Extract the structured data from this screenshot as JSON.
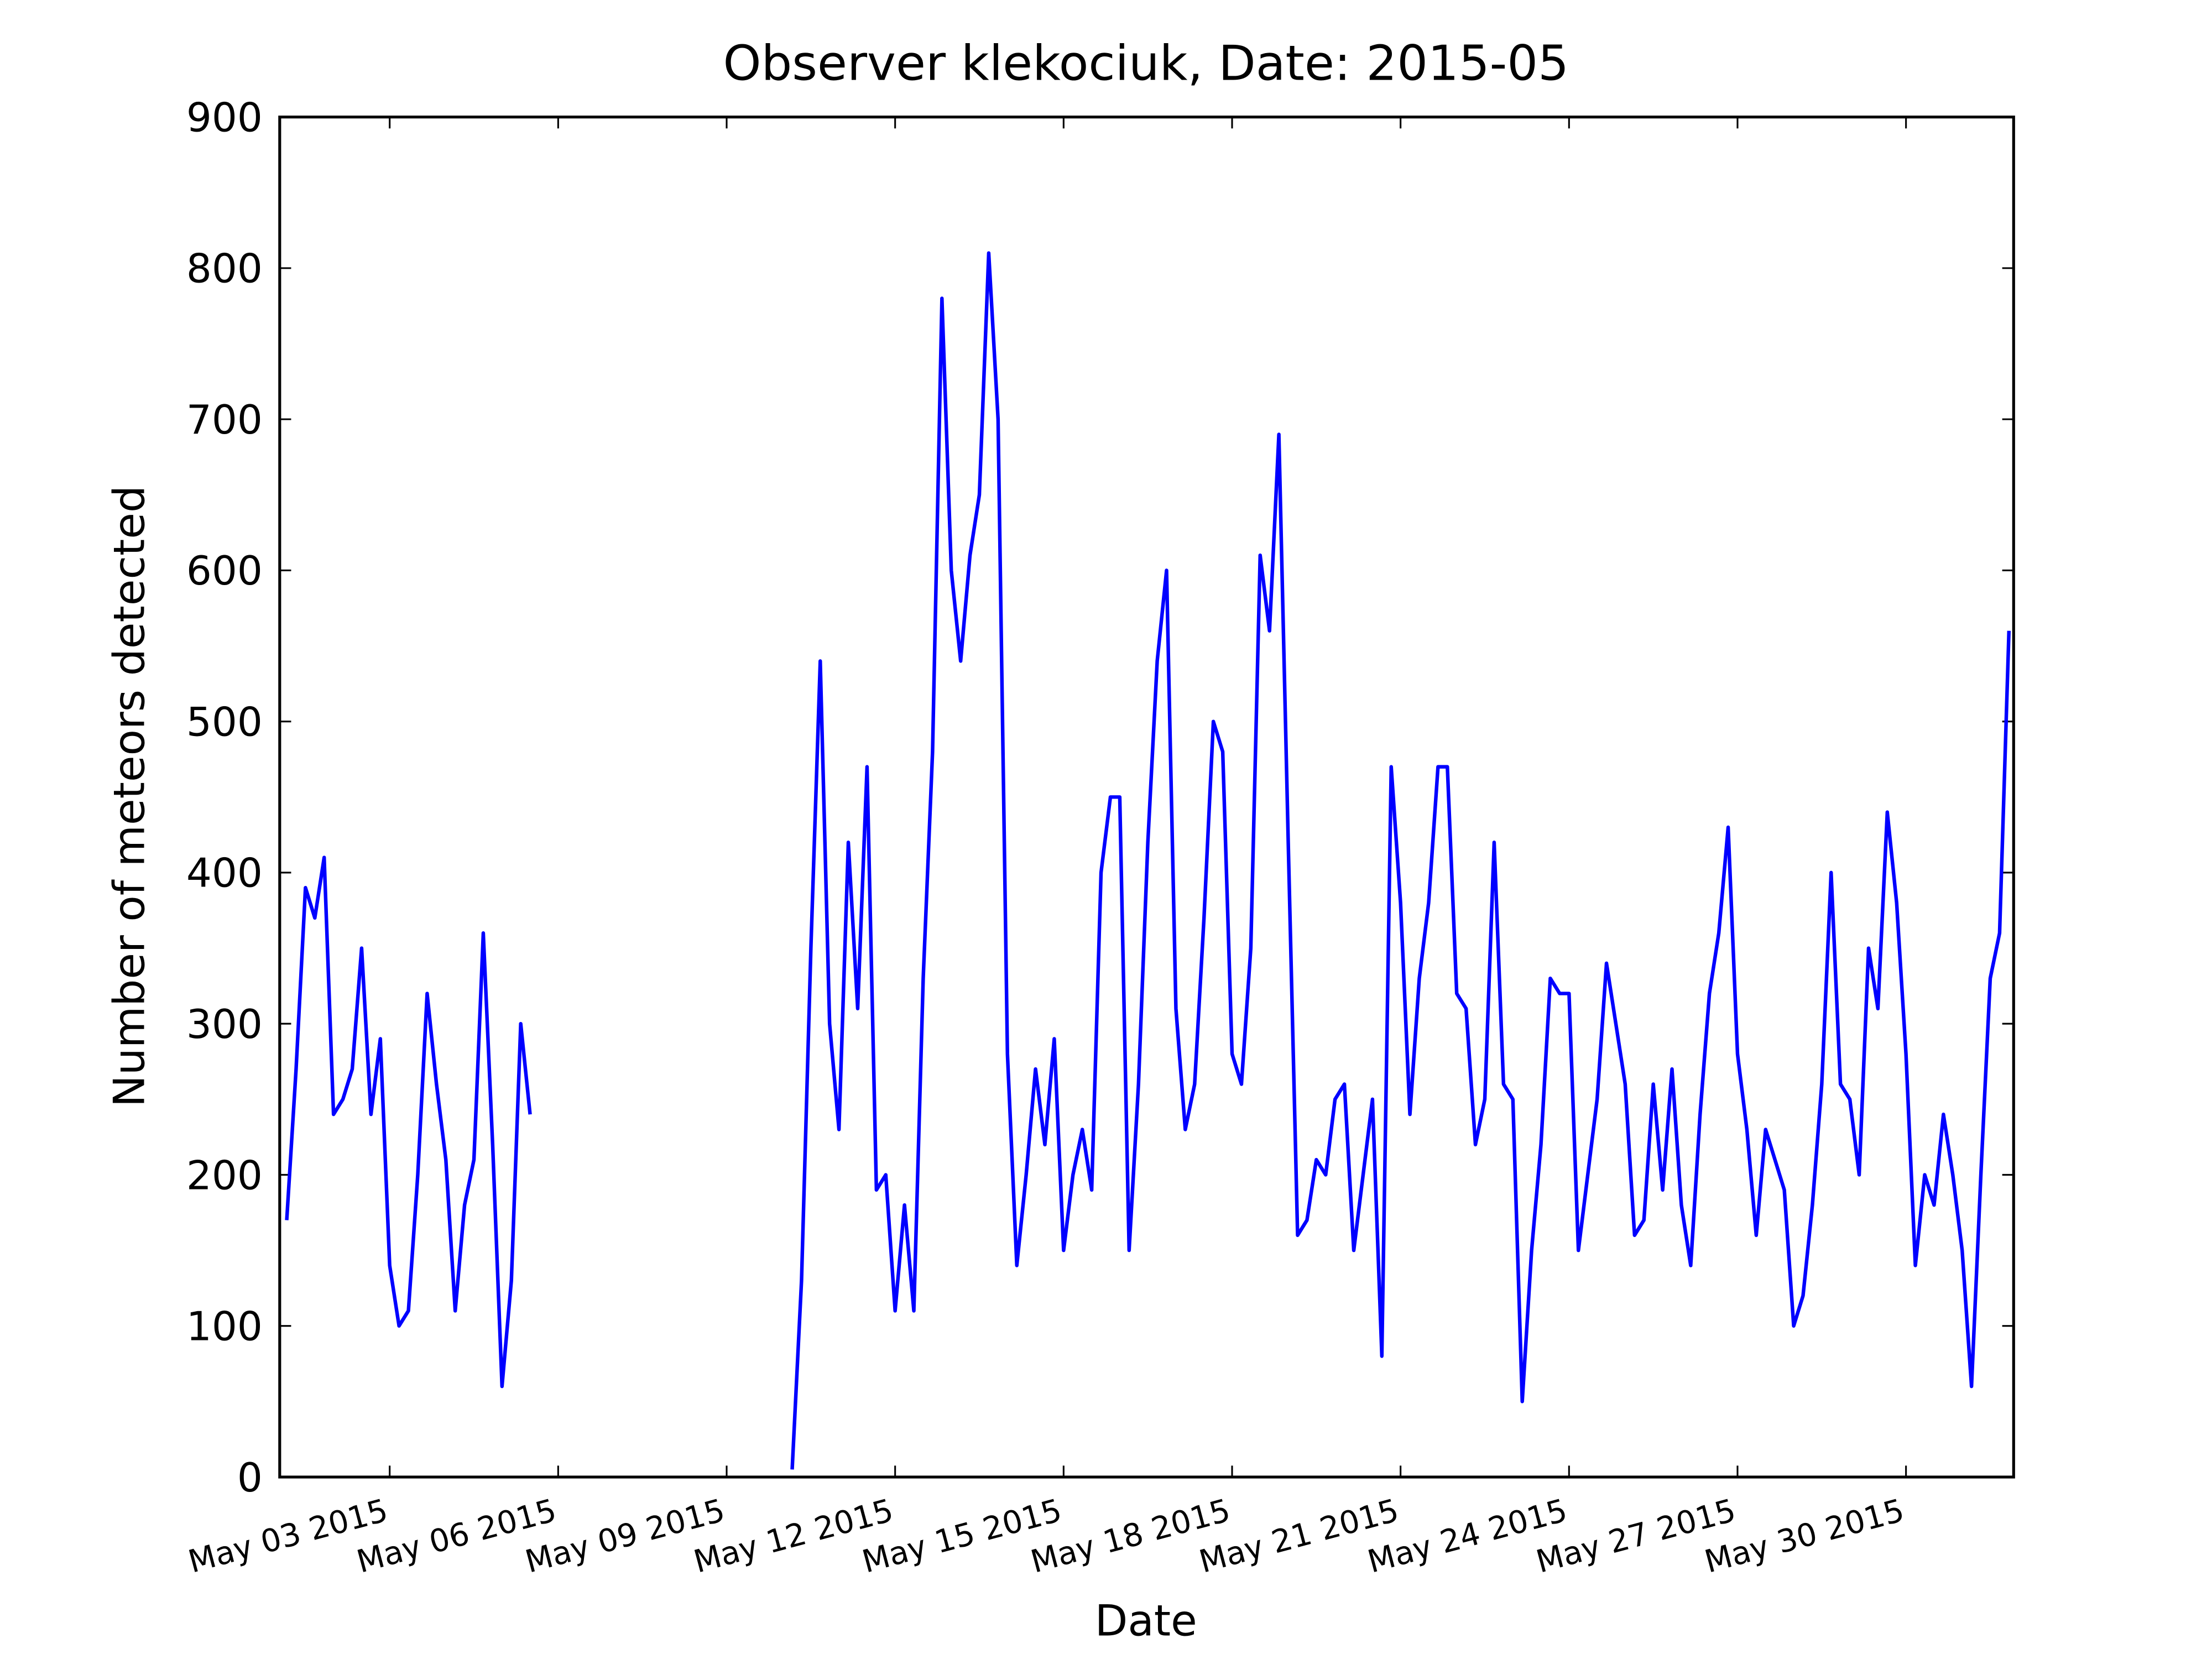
{
  "chart_data": {
    "type": "line",
    "title": "Observer klekociuk, Date: 2015-05",
    "x_label": "Date",
    "y_label": "Number of meteors detected",
    "color": "#0000ff",
    "x": [
      "2015-05-01T04:00",
      "2015-05-01T08:00",
      "2015-05-01T12:00",
      "2015-05-01T16:00",
      "2015-05-01T20:00",
      "2015-05-02T00:00",
      "2015-05-02T04:00",
      "2015-05-02T08:00",
      "2015-05-02T12:00",
      "2015-05-02T16:00",
      "2015-05-02T20:00",
      "2015-05-03T00:00",
      "2015-05-03T04:00",
      "2015-05-03T08:00",
      "2015-05-03T12:00",
      "2015-05-03T16:00",
      "2015-05-03T20:00",
      "2015-05-04T00:00",
      "2015-05-04T04:00",
      "2015-05-04T08:00",
      "2015-05-04T12:00",
      "2015-05-04T16:00",
      "2015-05-04T20:00",
      "2015-05-05T00:00",
      "2015-05-05T04:00",
      "2015-05-05T08:00",
      "2015-05-05T12:00",
      "2015-05-08T00:00",
      "2015-05-10T04:00",
      "2015-05-10T08:00",
      "2015-05-10T12:00",
      "2015-05-10T16:00",
      "2015-05-10T20:00",
      "2015-05-11T00:00",
      "2015-05-11T04:00",
      "2015-05-11T08:00",
      "2015-05-11T12:00",
      "2015-05-11T16:00",
      "2015-05-11T20:00",
      "2015-05-12T00:00",
      "2015-05-12T04:00",
      "2015-05-12T08:00",
      "2015-05-12T12:00",
      "2015-05-12T16:00",
      "2015-05-12T20:00",
      "2015-05-13T00:00",
      "2015-05-13T04:00",
      "2015-05-13T08:00",
      "2015-05-13T12:00",
      "2015-05-13T16:00",
      "2015-05-13T20:00",
      "2015-05-14T00:00",
      "2015-05-14T04:00",
      "2015-05-14T08:00",
      "2015-05-14T12:00",
      "2015-05-14T16:00",
      "2015-05-14T20:00",
      "2015-05-15T00:00",
      "2015-05-15T04:00",
      "2015-05-15T08:00",
      "2015-05-15T12:00",
      "2015-05-15T16:00",
      "2015-05-15T20:00",
      "2015-05-16T00:00",
      "2015-05-16T04:00",
      "2015-05-16T08:00",
      "2015-05-16T12:00",
      "2015-05-16T16:00",
      "2015-05-16T20:00",
      "2015-05-17T00:00",
      "2015-05-17T04:00",
      "2015-05-17T08:00",
      "2015-05-17T12:00",
      "2015-05-17T16:00",
      "2015-05-17T20:00",
      "2015-05-18T00:00",
      "2015-05-18T04:00",
      "2015-05-18T08:00",
      "2015-05-18T12:00",
      "2015-05-18T16:00",
      "2015-05-18T20:00",
      "2015-05-19T00:00",
      "2015-05-19T04:00",
      "2015-05-19T08:00",
      "2015-05-19T12:00",
      "2015-05-19T16:00",
      "2015-05-19T20:00",
      "2015-05-20T00:00",
      "2015-05-20T04:00",
      "2015-05-20T08:00",
      "2015-05-20T12:00",
      "2015-05-20T16:00",
      "2015-05-20T20:00",
      "2015-05-21T00:00",
      "2015-05-21T04:00",
      "2015-05-21T08:00",
      "2015-05-21T12:00",
      "2015-05-21T16:00",
      "2015-05-21T20:00",
      "2015-05-22T00:00",
      "2015-05-22T04:00",
      "2015-05-22T08:00",
      "2015-05-22T12:00",
      "2015-05-22T16:00",
      "2015-05-22T20:00",
      "2015-05-23T00:00",
      "2015-05-23T04:00",
      "2015-05-23T08:00",
      "2015-05-23T12:00",
      "2015-05-23T16:00",
      "2015-05-23T20:00",
      "2015-05-24T00:00",
      "2015-05-24T04:00",
      "2015-05-24T08:00",
      "2015-05-24T12:00",
      "2015-05-24T16:00",
      "2015-05-24T20:00",
      "2015-05-25T00:00",
      "2015-05-25T04:00",
      "2015-05-25T08:00",
      "2015-05-25T12:00",
      "2015-05-25T16:00",
      "2015-05-25T20:00",
      "2015-05-26T00:00",
      "2015-05-26T04:00",
      "2015-05-26T08:00",
      "2015-05-26T12:00",
      "2015-05-26T16:00",
      "2015-05-26T20:00",
      "2015-05-27T00:00",
      "2015-05-27T04:00",
      "2015-05-27T08:00",
      "2015-05-27T12:00",
      "2015-05-27T16:00",
      "2015-05-27T20:00",
      "2015-05-28T00:00",
      "2015-05-28T04:00",
      "2015-05-28T08:00",
      "2015-05-28T12:00",
      "2015-05-28T16:00",
      "2015-05-28T20:00",
      "2015-05-29T00:00",
      "2015-05-29T04:00",
      "2015-05-29T08:00",
      "2015-05-29T12:00",
      "2015-05-29T16:00",
      "2015-05-29T20:00",
      "2015-05-30T00:00",
      "2015-05-30T04:00",
      "2015-05-30T08:00",
      "2015-05-30T12:00",
      "2015-05-30T16:00",
      "2015-05-30T20:00",
      "2015-05-31T00:00",
      "2015-05-31T04:00",
      "2015-05-31T08:00",
      "2015-05-31T12:00",
      "2015-05-31T16:00",
      "2015-05-31T20:00"
    ],
    "values": [
      170,
      270,
      390,
      370,
      410,
      240,
      250,
      270,
      350,
      240,
      290,
      140,
      100,
      110,
      200,
      320,
      260,
      210,
      110,
      180,
      210,
      360,
      220,
      60,
      130,
      300,
      240,
      null,
      5,
      130,
      350,
      540,
      300,
      230,
      420,
      310,
      470,
      190,
      200,
      110,
      180,
      110,
      330,
      480,
      780,
      600,
      540,
      610,
      650,
      810,
      700,
      280,
      140,
      200,
      270,
      220,
      290,
      150,
      200,
      230,
      190,
      400,
      450,
      450,
      150,
      260,
      420,
      540,
      600,
      310,
      230,
      260,
      370,
      500,
      480,
      280,
      260,
      350,
      610,
      560,
      690,
      420,
      160,
      170,
      210,
      200,
      250,
      260,
      150,
      200,
      250,
      80,
      470,
      380,
      240,
      330,
      380,
      470,
      470,
      320,
      310,
      220,
      250,
      420,
      260,
      250,
      50,
      150,
      220,
      330,
      320,
      320,
      150,
      200,
      250,
      340,
      300,
      260,
      160,
      170,
      260,
      190,
      270,
      180,
      140,
      240,
      320,
      360,
      430,
      280,
      230,
      160,
      230,
      210,
      190,
      100,
      120,
      180,
      260,
      400,
      260,
      250,
      200,
      350,
      310,
      440,
      380,
      280,
      140,
      200,
      180,
      240,
      200,
      150,
      60,
      200,
      330,
      360,
      560
    ],
    "xlim": [
      "2015-05-01T01:00",
      "2015-05-31T22:00"
    ],
    "xticks": [
      {
        "value": "2015-05-03T00:00",
        "label": "May 03 2015"
      },
      {
        "value": "2015-05-06T00:00",
        "label": "May 06 2015"
      },
      {
        "value": "2015-05-09T00:00",
        "label": "May 09 2015"
      },
      {
        "value": "2015-05-12T00:00",
        "label": "May 12 2015"
      },
      {
        "value": "2015-05-15T00:00",
        "label": "May 15 2015"
      },
      {
        "value": "2015-05-18T00:00",
        "label": "May 18 2015"
      },
      {
        "value": "2015-05-21T00:00",
        "label": "May 21 2015"
      },
      {
        "value": "2015-05-24T00:00",
        "label": "May 24 2015"
      },
      {
        "value": "2015-05-27T00:00",
        "label": "May 27 2015"
      },
      {
        "value": "2015-05-30T00:00",
        "label": "May 30 2015"
      }
    ],
    "ylim": [
      0,
      900
    ],
    "yticks": [
      0,
      100,
      200,
      300,
      400,
      500,
      600,
      700,
      800,
      900
    ],
    "grid": false
  }
}
